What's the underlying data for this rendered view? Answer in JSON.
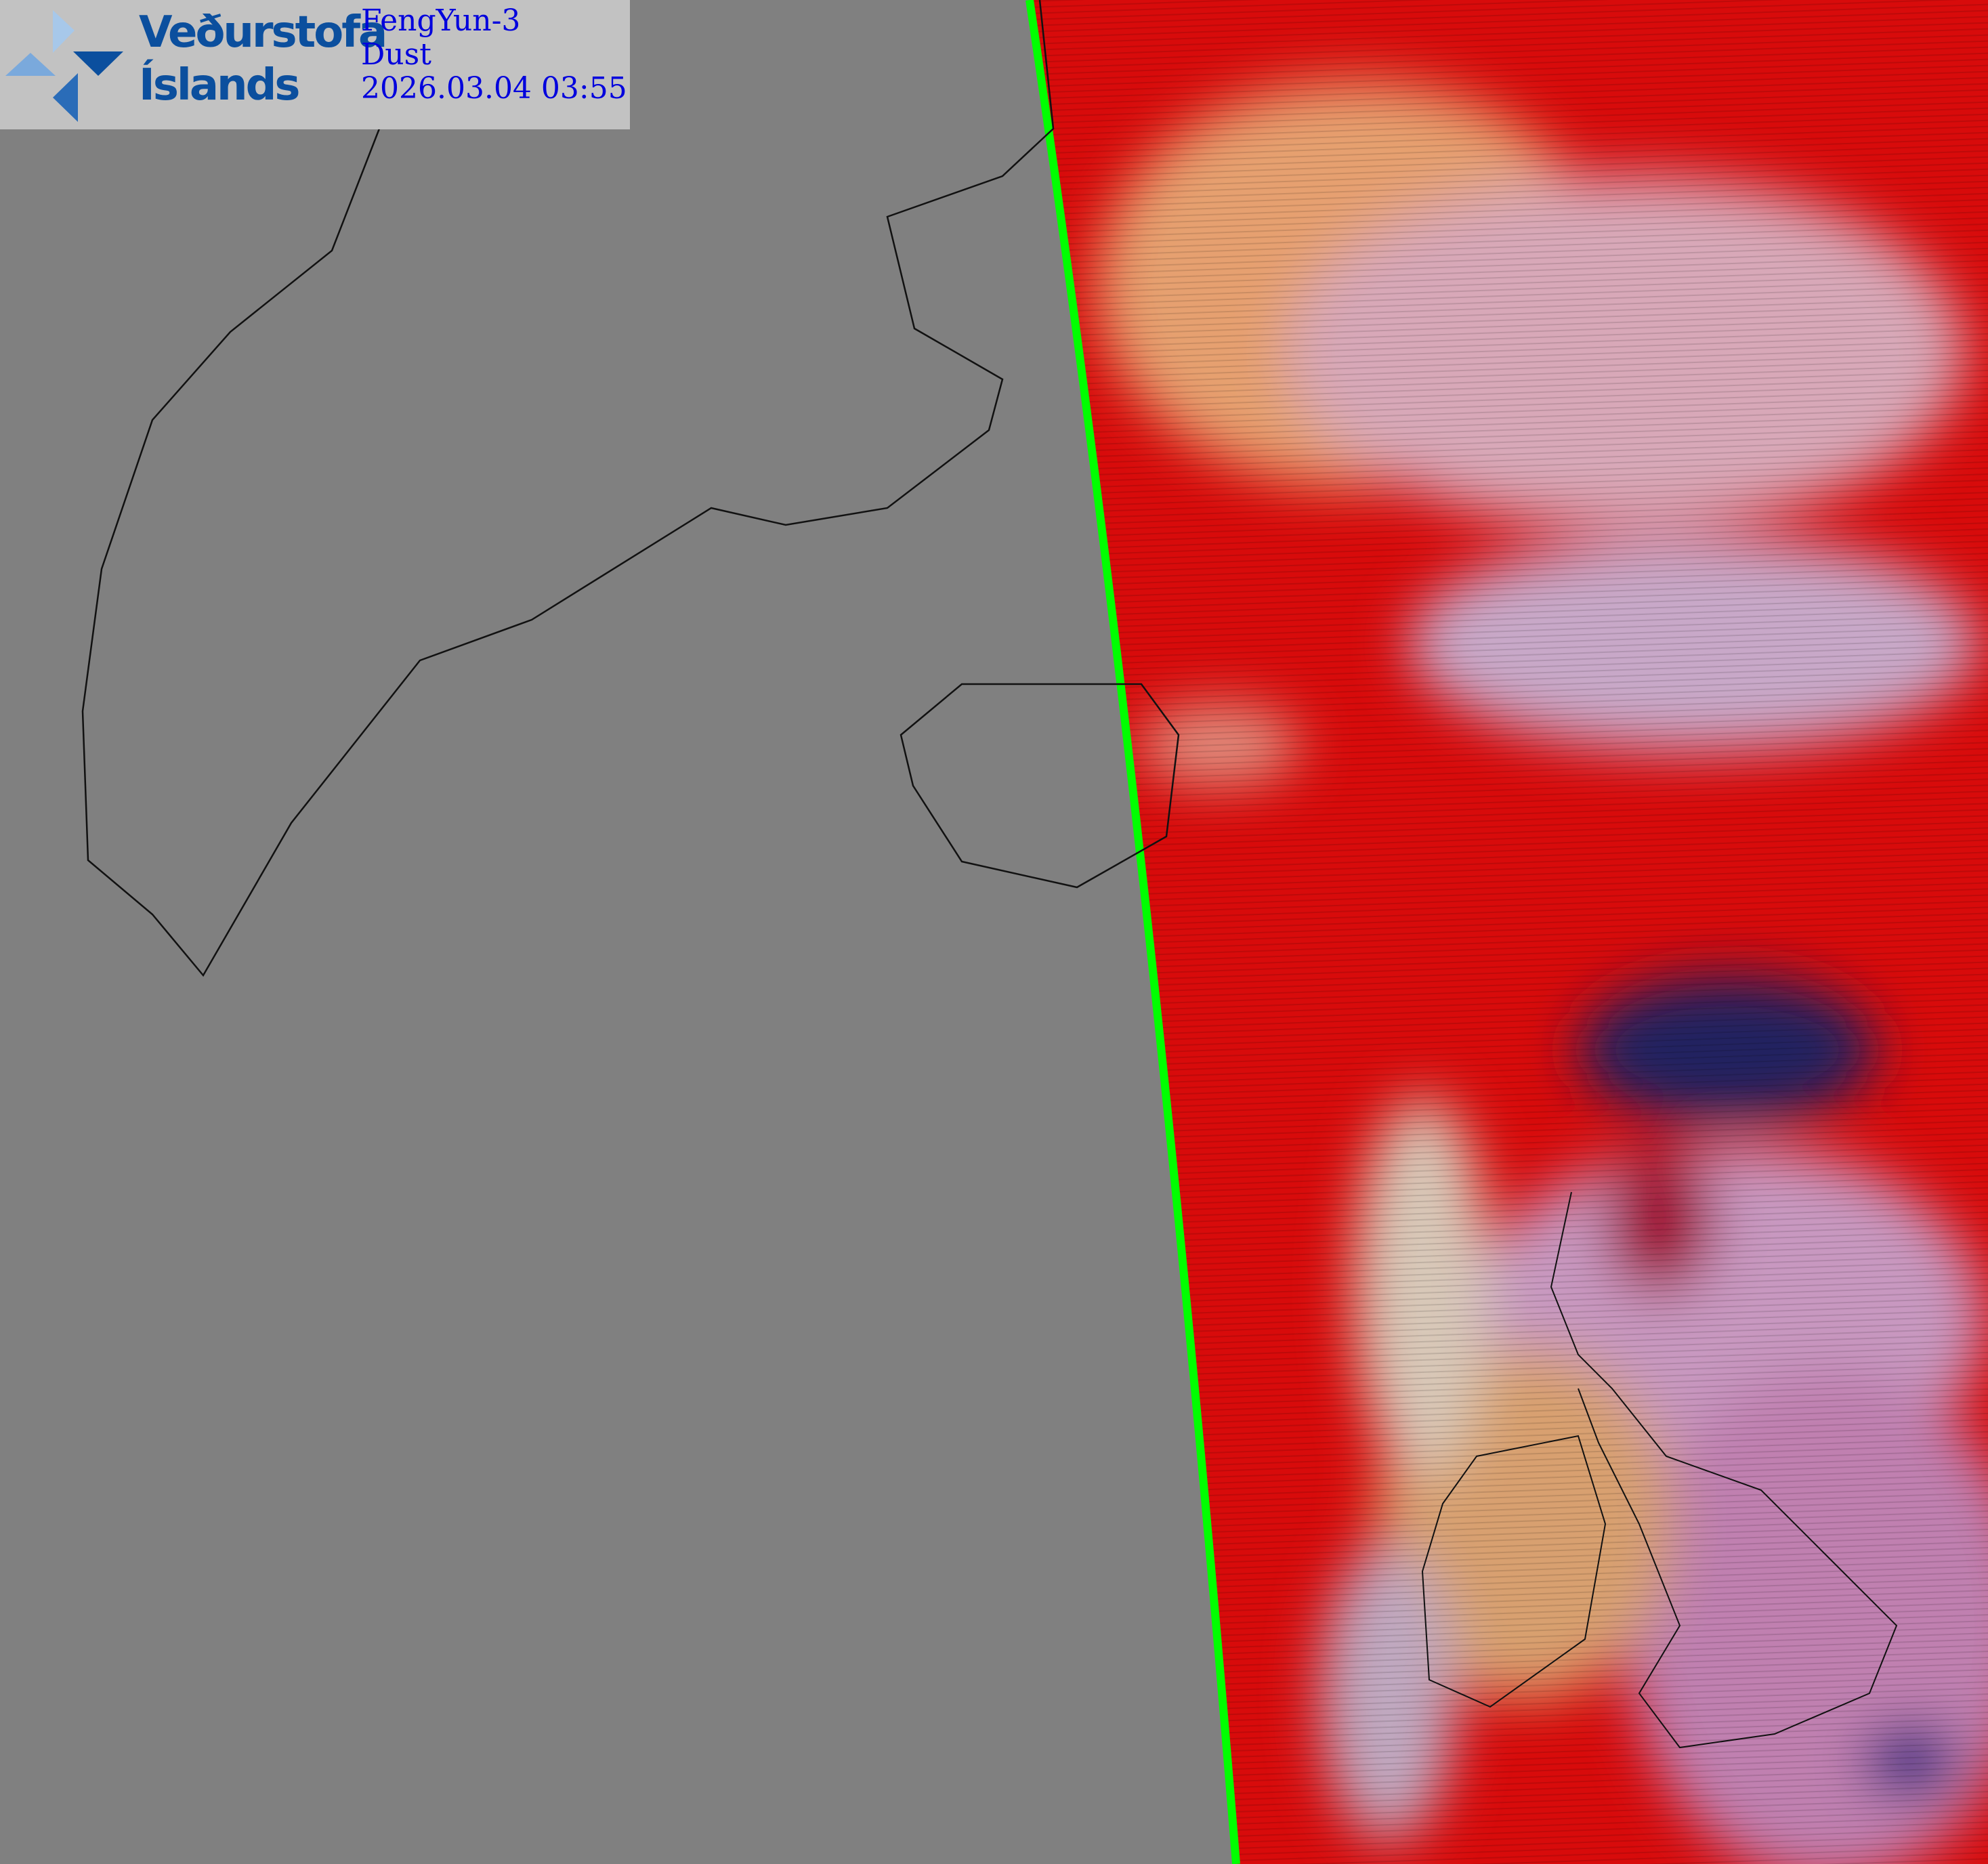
{
  "header": {
    "logo_line1": "Veðurstofa",
    "logo_line2": "Íslands",
    "satellite": "FengYun-3",
    "product": "Dust",
    "datetime": "2026.03.04 03:55"
  },
  "colors": {
    "background": "#808080",
    "swath_edge": "#00ff00",
    "text": "#0000dd",
    "logo": "#0b4f9e"
  }
}
